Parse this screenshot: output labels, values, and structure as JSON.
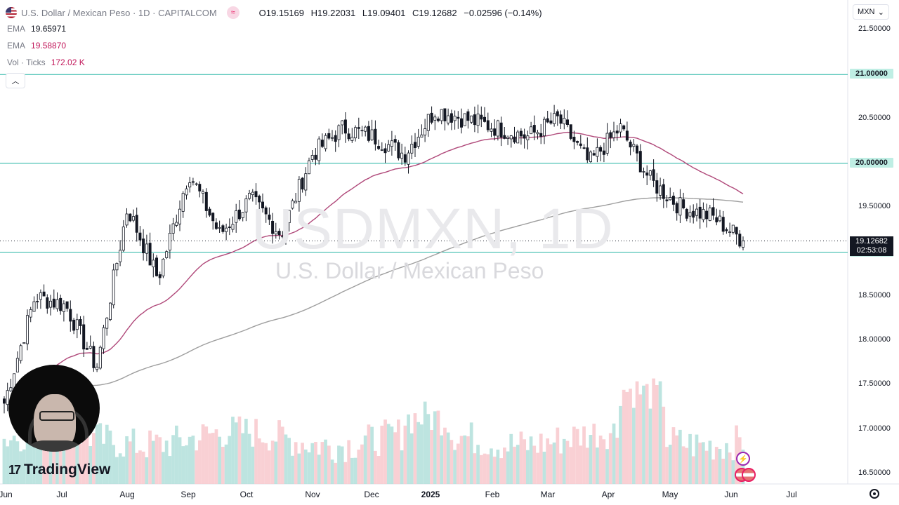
{
  "header": {
    "symbol_title": "U.S. Dollar / Mexican Peso",
    "interval": "1D",
    "source": "CAPITALCOM",
    "open_label": "O",
    "open": "19.15169",
    "high_label": "H",
    "high": "19.22031",
    "low_label": "L",
    "low": "19.09401",
    "close_label": "C",
    "close": "19.12682",
    "change": "−0.02596 (−0.14%)"
  },
  "indicators": [
    {
      "name": "EMA",
      "value": "19.65971",
      "color": "#787b86"
    },
    {
      "name": "EMA",
      "value": "19.58870",
      "color": "#c2185b"
    },
    {
      "name": "Vol · Ticks",
      "value": "172.02 K",
      "color": "#c2185b"
    }
  ],
  "currency_selector": "MXN",
  "watermark": {
    "symbol": "USDMXN, 1D",
    "description": "U.S. Dollar / Mexican Peso"
  },
  "logo_text": "TradingView",
  "price_axis": {
    "ticks": [
      "21.50000",
      "21.00000",
      "20.50000",
      "20.00000",
      "19.50000",
      "19.00000",
      "18.50000",
      "18.00000",
      "17.50000",
      "17.00000",
      "16.50000"
    ],
    "highlighted": [
      "21.00000",
      "20.00000",
      "19.00000"
    ],
    "last_price": "19.12682",
    "countdown": "02:53:08"
  },
  "time_axis": [
    "Jun",
    "Jul",
    "Aug",
    "Sep",
    "Oct",
    "Nov",
    "Dec",
    "2025",
    "Feb",
    "Mar",
    "Apr",
    "May",
    "Jun",
    "Jul"
  ],
  "colors": {
    "up": "#26a69a",
    "down": "#ef5350",
    "candle": "#131722",
    "hline": "#26b5a5",
    "ema_fast": "#b0497a",
    "ema_slow": "#9e9e9e"
  },
  "chart_data": {
    "type": "candlestick",
    "title": "U.S. Dollar / Mexican Peso · 1D · CAPITALCOM",
    "ylim": [
      16.4,
      21.6
    ],
    "horizontal_levels": [
      21.0,
      20.0,
      19.0
    ],
    "monthly_path": [
      {
        "x": "Jun",
        "price": 17.3
      },
      {
        "x": "Jun",
        "price": 18.5
      },
      {
        "x": "Jul",
        "price": 18.4
      },
      {
        "x": "Jul",
        "price": 17.7
      },
      {
        "x": "Aug",
        "price": 19.5
      },
      {
        "x": "Aug",
        "price": 18.7
      },
      {
        "x": "Sep",
        "price": 19.9
      },
      {
        "x": "Sep",
        "price": 19.2
      },
      {
        "x": "Oct",
        "price": 19.6
      },
      {
        "x": "Oct",
        "price": 19.2
      },
      {
        "x": "Nov",
        "price": 20.1
      },
      {
        "x": "Nov",
        "price": 20.4
      },
      {
        "x": "Dec",
        "price": 20.3
      },
      {
        "x": "Dec",
        "price": 20.1
      },
      {
        "x": "2025",
        "price": 20.6
      },
      {
        "x": "2025",
        "price": 20.5
      },
      {
        "x": "Feb",
        "price": 20.4
      },
      {
        "x": "Feb",
        "price": 20.3
      },
      {
        "x": "Mar",
        "price": 20.5
      },
      {
        "x": "Mar",
        "price": 20.0
      },
      {
        "x": "Apr",
        "price": 20.4
      },
      {
        "x": "Apr",
        "price": 19.8
      },
      {
        "x": "May",
        "price": 19.5
      },
      {
        "x": "May",
        "price": 19.4
      },
      {
        "x": "Jun",
        "price": 19.13
      }
    ],
    "ema_fast_last": 19.5887,
    "ema_slow_last": 19.65971,
    "last": 19.12682
  }
}
